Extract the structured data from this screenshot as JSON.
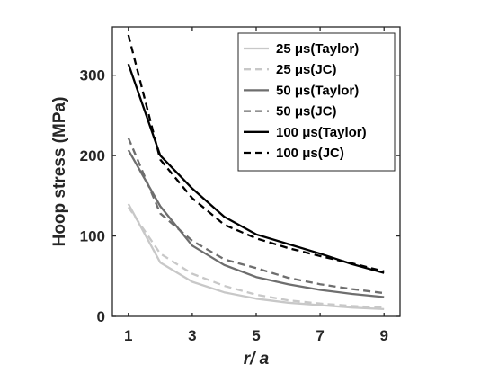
{
  "chart_data": {
    "type": "line",
    "xlabel": "r/ a",
    "ylabel": "Hoop stress (MPa)",
    "xlim": [
      0.5,
      9.5
    ],
    "ylim": [
      0,
      360
    ],
    "xticks": [
      1,
      3,
      5,
      7,
      9
    ],
    "yticks": [
      0,
      100,
      200,
      300
    ],
    "grid": false,
    "legend_position": "top-right",
    "x": [
      1,
      2,
      3,
      4,
      5,
      6,
      7,
      8,
      9
    ],
    "series": [
      {
        "name": "25 μs(Taylor)",
        "color": "#c8c8c8",
        "dash": "solid",
        "values": [
          140,
          67,
          43,
          30,
          22,
          17,
          14,
          11,
          9
        ]
      },
      {
        "name": "25 μs(JC)",
        "color": "#c8c8c8",
        "dash": "dashed",
        "values": [
          136,
          78,
          53,
          38,
          27,
          20,
          16,
          13,
          11
        ]
      },
      {
        "name": "50 μs(Taylor)",
        "color": "#6e6e6e",
        "dash": "solid",
        "values": [
          207,
          137,
          88,
          64,
          49,
          40,
          33,
          28,
          24
        ]
      },
      {
        "name": "50 μs(JC)",
        "color": "#6e6e6e",
        "dash": "dashed",
        "values": [
          222,
          128,
          94,
          71,
          60,
          48,
          40,
          34,
          29
        ]
      },
      {
        "name": "100 μs(Taylor)",
        "color": "#000000",
        "dash": "solid",
        "values": [
          314,
          200,
          159,
          124,
          102,
          90,
          78,
          65,
          54
        ]
      },
      {
        "name": "100 μs(JC)",
        "color": "#000000",
        "dash": "dashed",
        "values": [
          350,
          195,
          147,
          114,
          97,
          85,
          75,
          66,
          56
        ]
      }
    ]
  }
}
